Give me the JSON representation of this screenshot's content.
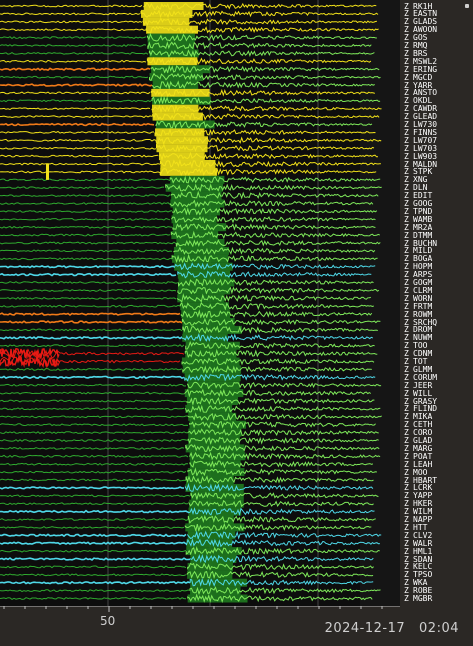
{
  "x_tick_label": "50",
  "timestamp": {
    "date": "2024-12-17",
    "time": "02:04"
  },
  "component": "Z",
  "colors": {
    "yellow": "#f2e21a",
    "orange": "#f07a18",
    "red": "#e81a14",
    "green": "#2faa2f",
    "light_green": "#7ee85a",
    "dark_green": "#1f7a1f",
    "cyan": "#4fd8e8",
    "background": "#0d0d0d",
    "panel": "#2b2825"
  },
  "stations": [
    {
      "name": "RK1H",
      "color": "yellow"
    },
    {
      "name": "EASTN",
      "color": "yellow"
    },
    {
      "name": "GLADS",
      "color": "yellow"
    },
    {
      "name": "AWOON",
      "color": "yellow"
    },
    {
      "name": "GOS",
      "color": "green"
    },
    {
      "name": "RMQ",
      "color": "green"
    },
    {
      "name": "BRS",
      "color": "green"
    },
    {
      "name": "MSWL2",
      "color": "yellow"
    },
    {
      "name": "ERING",
      "color": "orange"
    },
    {
      "name": "MGCD",
      "color": "green"
    },
    {
      "name": "YARR",
      "color": "orange"
    },
    {
      "name": "ANSTO",
      "color": "yellow"
    },
    {
      "name": "OKDL",
      "color": "green"
    },
    {
      "name": "CAWDR",
      "color": "yellow"
    },
    {
      "name": "GLEAD",
      "color": "yellow"
    },
    {
      "name": "LW730",
      "color": "orange"
    },
    {
      "name": "FINNS",
      "color": "yellow"
    },
    {
      "name": "LW707",
      "color": "yellow"
    },
    {
      "name": "LW703",
      "color": "yellow"
    },
    {
      "name": "LW903",
      "color": "yellow"
    },
    {
      "name": "MALDN",
      "color": "yellow"
    },
    {
      "name": "STPK",
      "color": "yellow"
    },
    {
      "name": "XNG",
      "color": "green"
    },
    {
      "name": "DLN",
      "color": "green"
    },
    {
      "name": "EDIT",
      "color": "green"
    },
    {
      "name": "GOOG",
      "color": "green"
    },
    {
      "name": "TPND",
      "color": "green"
    },
    {
      "name": "WAMB",
      "color": "green"
    },
    {
      "name": "MR2A",
      "color": "green"
    },
    {
      "name": "DTMM",
      "color": "green"
    },
    {
      "name": "BUCHN",
      "color": "green"
    },
    {
      "name": "MILD",
      "color": "green"
    },
    {
      "name": "BOGA",
      "color": "green"
    },
    {
      "name": "HOPM",
      "color": "cyan"
    },
    {
      "name": "ARPS",
      "color": "cyan"
    },
    {
      "name": "GOGM",
      "color": "green"
    },
    {
      "name": "CLRM",
      "color": "green"
    },
    {
      "name": "WORN",
      "color": "green"
    },
    {
      "name": "FRTM",
      "color": "green"
    },
    {
      "name": "ROWM",
      "color": "orange"
    },
    {
      "name": "SRCHQ",
      "color": "orange"
    },
    {
      "name": "DROM",
      "color": "green"
    },
    {
      "name": "NUWM",
      "color": "cyan"
    },
    {
      "name": "TOO",
      "color": "green"
    },
    {
      "name": "CDNM",
      "color": "red"
    },
    {
      "name": "TOT",
      "color": "red"
    },
    {
      "name": "GLMM",
      "color": "green"
    },
    {
      "name": "CORUM",
      "color": "cyan"
    },
    {
      "name": "JEER",
      "color": "green"
    },
    {
      "name": "WILL",
      "color": "green"
    },
    {
      "name": "GRASY",
      "color": "green"
    },
    {
      "name": "FLIND",
      "color": "green"
    },
    {
      "name": "MIKA",
      "color": "green"
    },
    {
      "name": "CETH",
      "color": "green"
    },
    {
      "name": "CORO",
      "color": "green"
    },
    {
      "name": "GLAD",
      "color": "green"
    },
    {
      "name": "MARG",
      "color": "green"
    },
    {
      "name": "POAT",
      "color": "green"
    },
    {
      "name": "LEAH",
      "color": "green"
    },
    {
      "name": "MOO",
      "color": "green"
    },
    {
      "name": "HBART",
      "color": "green"
    },
    {
      "name": "LCRK",
      "color": "cyan"
    },
    {
      "name": "YAPP",
      "color": "green"
    },
    {
      "name": "HKER",
      "color": "green"
    },
    {
      "name": "WILM",
      "color": "cyan"
    },
    {
      "name": "NAPP",
      "color": "green"
    },
    {
      "name": "HTT",
      "color": "green"
    },
    {
      "name": "CLV2",
      "color": "cyan"
    },
    {
      "name": "WALR",
      "color": "cyan"
    },
    {
      "name": "HML1",
      "color": "green"
    },
    {
      "name": "SDAN",
      "color": "cyan"
    },
    {
      "name": "KELC",
      "color": "green"
    },
    {
      "name": "TPSO",
      "color": "green"
    },
    {
      "name": "WKA",
      "color": "cyan"
    },
    {
      "name": "ROBE",
      "color": "green"
    },
    {
      "name": "MGBR",
      "color": "green"
    }
  ]
}
